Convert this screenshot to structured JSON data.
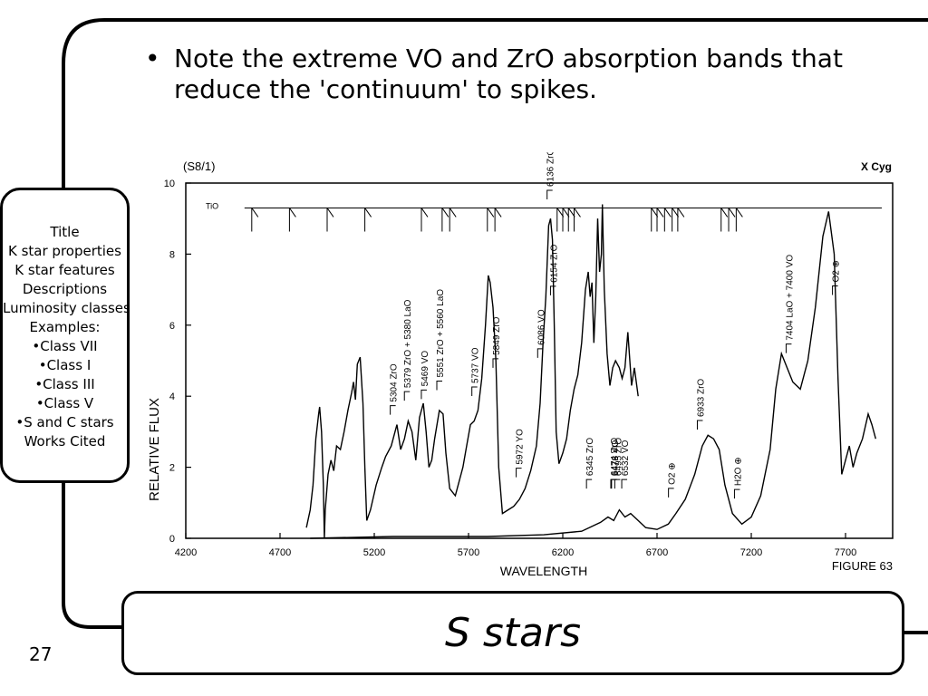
{
  "slide": {
    "bullet": "Note the extreme VO and ZrO absorption bands that reduce the 'continuum' to spikes.",
    "bullet_marker": "•",
    "title": "S stars",
    "page_number": "27"
  },
  "nav": {
    "items": [
      "Title",
      "K star properties",
      "K star features",
      "Descriptions",
      "Luminosity classes",
      "Examples:",
      "•Class VII",
      "•Class I",
      "•Class III",
      "•Class V",
      "•S and C stars",
      "Works Cited"
    ]
  },
  "chart_data": {
    "type": "line",
    "header_left": "(S8/1)",
    "header_right": "X Cyg",
    "xlabel": "WAVELENGTH",
    "ylabel": "RELATIVE FLUX",
    "figure_label": "FIGURE 63",
    "xlim": [
      4200,
      7950
    ],
    "ylim": [
      0,
      10
    ],
    "xticks": [
      "4200",
      "4700",
      "5200",
      "5700",
      "6200",
      "6700",
      "7200",
      "7700"
    ],
    "yticks": [
      "0",
      "2",
      "4",
      "6",
      "8",
      "10"
    ],
    "grid": false,
    "series": [
      {
        "name": "spectrum",
        "points": [
          [
            4840,
            0.3
          ],
          [
            4860,
            0.8
          ],
          [
            4875,
            1.5
          ],
          [
            4890,
            2.8
          ],
          [
            4905,
            3.5
          ],
          [
            4910,
            3.7
          ],
          [
            4920,
            3.0
          ],
          [
            4930,
            1.5
          ],
          [
            4935,
            0.0
          ],
          [
            4940,
            0.8
          ],
          [
            4955,
            1.8
          ],
          [
            4970,
            2.2
          ],
          [
            4985,
            1.9
          ],
          [
            5000,
            2.6
          ],
          [
            5020,
            2.5
          ],
          [
            5040,
            3.0
          ],
          [
            5060,
            3.6
          ],
          [
            5080,
            4.1
          ],
          [
            5090,
            4.4
          ],
          [
            5100,
            3.9
          ],
          [
            5110,
            4.9
          ],
          [
            5125,
            5.1
          ],
          [
            5140,
            3.8
          ],
          [
            5150,
            2.0
          ],
          [
            5160,
            0.5
          ],
          [
            5180,
            0.8
          ],
          [
            5210,
            1.5
          ],
          [
            5240,
            2.0
          ],
          [
            5260,
            2.3
          ],
          [
            5290,
            2.6
          ],
          [
            5320,
            3.2
          ],
          [
            5340,
            2.5
          ],
          [
            5360,
            2.8
          ],
          [
            5380,
            3.3
          ],
          [
            5400,
            3.0
          ],
          [
            5420,
            2.2
          ],
          [
            5440,
            3.4
          ],
          [
            5460,
            3.8
          ],
          [
            5475,
            3.0
          ],
          [
            5490,
            2.0
          ],
          [
            5505,
            2.2
          ],
          [
            5520,
            2.8
          ],
          [
            5545,
            3.6
          ],
          [
            5565,
            3.5
          ],
          [
            5580,
            2.4
          ],
          [
            5600,
            1.4
          ],
          [
            5630,
            1.2
          ],
          [
            5650,
            1.6
          ],
          [
            5670,
            2.0
          ],
          [
            5690,
            2.6
          ],
          [
            5710,
            3.2
          ],
          [
            5730,
            3.3
          ],
          [
            5750,
            3.6
          ],
          [
            5770,
            4.5
          ],
          [
            5790,
            6.0
          ],
          [
            5805,
            7.4
          ],
          [
            5815,
            7.2
          ],
          [
            5830,
            6.5
          ],
          [
            5845,
            5.0
          ],
          [
            5860,
            2.0
          ],
          [
            5880,
            0.7
          ],
          [
            5910,
            0.8
          ],
          [
            5940,
            0.9
          ],
          [
            5970,
            1.1
          ],
          [
            6000,
            1.4
          ],
          [
            6030,
            1.9
          ],
          [
            6060,
            2.6
          ],
          [
            6080,
            3.8
          ],
          [
            6095,
            5.5
          ],
          [
            6110,
            6.8
          ],
          [
            6125,
            8.8
          ],
          [
            6135,
            9.0
          ],
          [
            6145,
            8.4
          ],
          [
            6155,
            6.0
          ],
          [
            6165,
            3.0
          ],
          [
            6180,
            2.1
          ],
          [
            6200,
            2.4
          ],
          [
            6220,
            2.8
          ],
          [
            6240,
            3.6
          ],
          [
            6260,
            4.2
          ],
          [
            6280,
            4.6
          ],
          [
            6300,
            5.5
          ],
          [
            6320,
            7.0
          ],
          [
            6335,
            7.5
          ],
          [
            6345,
            6.8
          ],
          [
            6355,
            7.2
          ],
          [
            6365,
            5.5
          ],
          [
            6375,
            6.8
          ],
          [
            6385,
            9.0
          ],
          [
            6395,
            7.5
          ],
          [
            6405,
            8.0
          ],
          [
            6410,
            9.4
          ],
          [
            6420,
            7.0
          ],
          [
            6435,
            5.2
          ],
          [
            6450,
            4.3
          ],
          [
            6465,
            4.8
          ],
          [
            6480,
            5.0
          ],
          [
            6500,
            4.8
          ],
          [
            6515,
            4.5
          ],
          [
            6530,
            4.8
          ],
          [
            6545,
            5.8
          ],
          [
            6565,
            4.3
          ],
          [
            6580,
            4.8
          ],
          [
            6600,
            4.0
          ]
        ]
      }
    ],
    "lower_trace": [
      [
        4860,
        0.0
      ],
      [
        5300,
        0.05
      ],
      [
        5800,
        0.05
      ],
      [
        6100,
        0.1
      ],
      [
        6300,
        0.2
      ],
      [
        6400,
        0.45
      ],
      [
        6440,
        0.6
      ],
      [
        6470,
        0.5
      ],
      [
        6500,
        0.8
      ],
      [
        6530,
        0.6
      ],
      [
        6560,
        0.7
      ],
      [
        6600,
        0.5
      ],
      [
        6640,
        0.3
      ],
      [
        6700,
        0.25
      ],
      [
        6760,
        0.4
      ],
      [
        6800,
        0.7
      ],
      [
        6850,
        1.1
      ],
      [
        6900,
        1.8
      ],
      [
        6940,
        2.6
      ],
      [
        6970,
        2.9
      ],
      [
        7000,
        2.8
      ],
      [
        7030,
        2.5
      ],
      [
        7060,
        1.5
      ],
      [
        7100,
        0.7
      ],
      [
        7150,
        0.4
      ],
      [
        7200,
        0.6
      ],
      [
        7250,
        1.2
      ],
      [
        7300,
        2.5
      ],
      [
        7330,
        4.2
      ],
      [
        7360,
        5.2
      ],
      [
        7390,
        4.8
      ],
      [
        7420,
        4.4
      ],
      [
        7460,
        4.2
      ],
      [
        7500,
        5.0
      ],
      [
        7540,
        6.5
      ],
      [
        7580,
        8.5
      ],
      [
        7610,
        9.2
      ],
      [
        7640,
        8.0
      ],
      [
        7660,
        4.5
      ],
      [
        7680,
        1.8
      ],
      [
        7700,
        2.2
      ],
      [
        7720,
        2.6
      ],
      [
        7740,
        2.0
      ],
      [
        7760,
        2.4
      ],
      [
        7790,
        2.8
      ],
      [
        7820,
        3.5
      ],
      [
        7840,
        3.2
      ],
      [
        7860,
        2.8
      ]
    ],
    "reference_line": {
      "label": "TiO",
      "y": 9.3,
      "x_start": 4550,
      "x_end": 7950,
      "ticks": [
        4550,
        4750,
        4950,
        5150,
        5450,
        5560,
        5600,
        5800,
        5840,
        6170,
        6200,
        6230,
        6260,
        6670,
        6700,
        6740,
        6780,
        6810,
        7040,
        7080,
        7120
      ]
    },
    "annotations": [
      {
        "text": "5304 ZrO",
        "x": 5304
      },
      {
        "text": "5379 ZrO + 5380 LaO",
        "x": 5379
      },
      {
        "text": "5469 VO",
        "x": 5469
      },
      {
        "text": "5551 ZrO + 5560 LaO",
        "x": 5551
      },
      {
        "text": "5737 VO",
        "x": 5737
      },
      {
        "text": "5849 ZrO",
        "x": 5849
      },
      {
        "text": "5972 YO",
        "x": 5972
      },
      {
        "text": "6086 VO",
        "x": 6086
      },
      {
        "text": "6136 ZrO",
        "x": 6136
      },
      {
        "text": "6154 ZrO",
        "x": 6154
      },
      {
        "text": "6345 ZrO",
        "x": 6345
      },
      {
        "text": "6474 ZrO",
        "x": 6474
      },
      {
        "text": "6478 VO",
        "x": 6478
      },
      {
        "text": "6495 ZrO",
        "x": 6495
      },
      {
        "text": "6532 VO",
        "x": 6532
      },
      {
        "text": "O2 ⊕",
        "x": 6780
      },
      {
        "text": "6933 ZrO",
        "x": 6933
      },
      {
        "text": "H2O ⊕",
        "x": 7130
      },
      {
        "text": "7404 LaO + 7400 VO",
        "x": 7404
      },
      {
        "text": "O2 ⊕",
        "x": 7650
      }
    ]
  }
}
